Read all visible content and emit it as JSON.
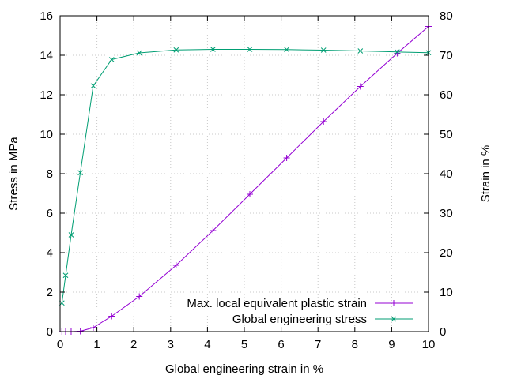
{
  "chart_data": {
    "type": "line",
    "xlabel": "Global engineering strain in %",
    "ylabel_left": "Stress in MPa",
    "ylabel_right": "Strain in %",
    "xlim": [
      0,
      10
    ],
    "ylim_left": [
      0,
      16
    ],
    "ylim_right": [
      0,
      80
    ],
    "x_ticks": [
      0,
      1,
      2,
      3,
      4,
      5,
      6,
      7,
      8,
      9,
      10
    ],
    "y_left_ticks": [
      0,
      2,
      4,
      6,
      8,
      10,
      12,
      14,
      16
    ],
    "y_right_ticks": [
      0,
      10,
      20,
      30,
      40,
      50,
      60,
      70,
      80
    ],
    "grid": true,
    "legend_position": "bottom-right",
    "series": [
      {
        "name": "Max. local equivalent plastic strain",
        "axis": "right",
        "color": "#9400d3",
        "marker": "plus",
        "x": [
          0.05,
          0.15,
          0.3,
          0.55,
          0.9,
          1.4,
          2.15,
          3.15,
          4.15,
          5.15,
          6.15,
          7.15,
          8.15,
          9.15,
          10.0
        ],
        "y": [
          0,
          0,
          0,
          0.1,
          1.0,
          3.9,
          8.9,
          16.8,
          25.6,
          34.8,
          44.0,
          53.2,
          62.1,
          70.5,
          77.3
        ]
      },
      {
        "name": "Global engineering stress",
        "axis": "left",
        "color": "#009e73",
        "marker": "cross",
        "x": [
          0.05,
          0.15,
          0.3,
          0.55,
          0.9,
          1.4,
          2.15,
          3.15,
          4.15,
          5.15,
          6.15,
          7.15,
          8.15,
          9.15,
          10.0
        ],
        "y": [
          1.45,
          2.85,
          4.9,
          8.05,
          12.45,
          13.78,
          14.12,
          14.27,
          14.3,
          14.3,
          14.29,
          14.26,
          14.22,
          14.17,
          14.13
        ]
      }
    ]
  }
}
